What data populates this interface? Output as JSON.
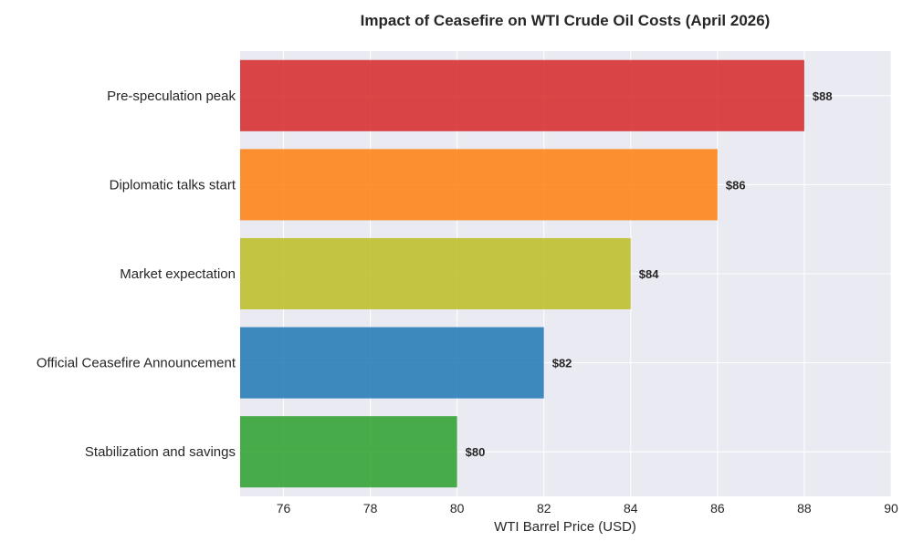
{
  "chart_data": {
    "type": "bar",
    "orientation": "horizontal",
    "title": "Impact of Ceasefire on WTI Crude Oil Costs (April 2026)",
    "xlabel": "WTI Barrel Price (USD)",
    "ylabel": "",
    "categories": [
      "Pre-speculation peak",
      "Diplomatic talks start",
      "Market expectation",
      "Official Ceasefire Announcement",
      "Stabilization and savings"
    ],
    "values": [
      88,
      86,
      84,
      82,
      80
    ],
    "data_labels": [
      "$88",
      "$86",
      "$84",
      "$82",
      "$80"
    ],
    "colors": [
      "#d62728",
      "#ff7f0e",
      "#bcbd22",
      "#1f77b4",
      "#2ca02c"
    ],
    "xlim": [
      75,
      90
    ],
    "xticks": [
      76,
      78,
      80,
      82,
      84,
      86,
      88,
      90
    ],
    "grid": true,
    "background": "#eaeaf2"
  }
}
